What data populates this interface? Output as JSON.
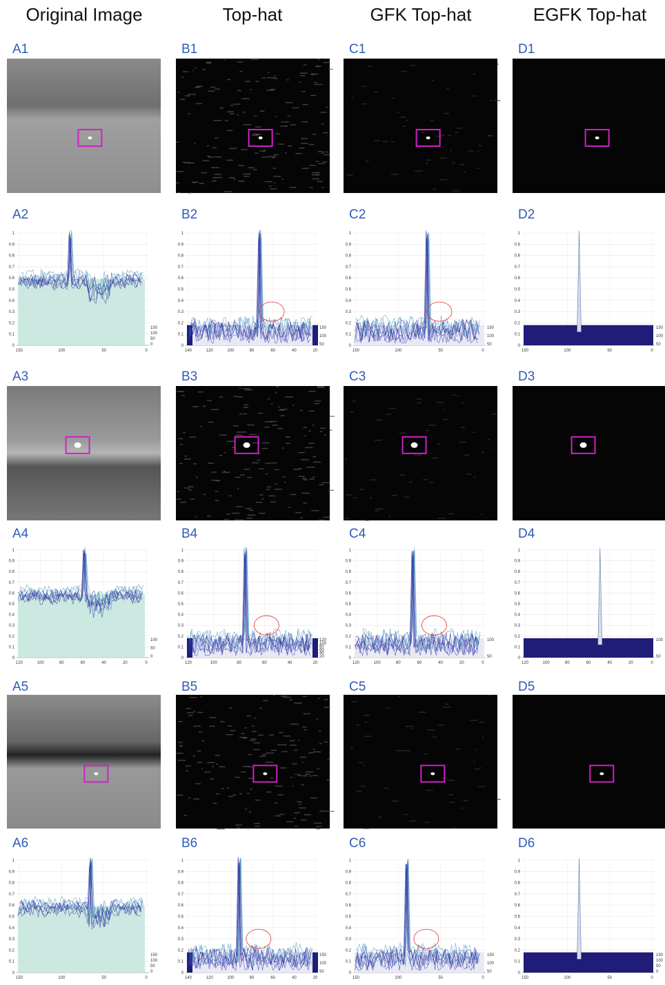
{
  "columns": [
    "Original Image",
    "Top-hat",
    "GFK Top-hat",
    "EGFK Top-hat"
  ],
  "rows": [
    {
      "panels": [
        {
          "label": "A1"
        },
        {
          "label": "B1"
        },
        {
          "label": "C1"
        },
        {
          "label": "D1"
        }
      ]
    },
    {
      "panels": [
        {
          "label": "A2",
          "yticks": [
            0,
            0.1,
            0.2,
            0.3,
            0.4,
            0.5,
            0.6,
            0.7,
            0.8,
            0.9,
            1
          ],
          "xticks": [
            150,
            100,
            50,
            0
          ],
          "zticks": [
            150,
            100,
            50,
            0
          ]
        },
        {
          "label": "B2",
          "yticks": [
            0,
            0.1,
            0.2,
            0.3,
            0.4,
            0.5,
            0.6,
            0.7,
            0.8,
            0.9,
            1
          ],
          "xticks": [
            140,
            120,
            100,
            80,
            60,
            40,
            20
          ],
          "zticks": [
            150,
            100,
            50
          ]
        },
        {
          "label": "C2",
          "yticks": [
            0,
            0.1,
            0.2,
            0.3,
            0.4,
            0.5,
            0.6,
            0.7,
            0.8,
            0.9,
            1
          ],
          "xticks": [
            150,
            100,
            50,
            0
          ],
          "zticks": [
            150,
            100,
            50
          ]
        },
        {
          "label": "D2",
          "yticks": [
            0,
            0.1,
            0.2,
            0.3,
            0.4,
            0.5,
            0.6,
            0.7,
            0.8,
            0.9,
            1
          ],
          "xticks": [
            150,
            100,
            50,
            0
          ],
          "zticks": [
            150,
            100,
            50
          ]
        }
      ]
    },
    {
      "panels": [
        {
          "label": "A3"
        },
        {
          "label": "B3"
        },
        {
          "label": "C3"
        },
        {
          "label": "D3"
        }
      ]
    },
    {
      "panels": [
        {
          "label": "A4",
          "yticks": [
            0,
            0.1,
            0.2,
            0.3,
            0.4,
            0.5,
            0.6,
            0.7,
            0.8,
            0.9,
            1
          ],
          "xticks": [
            120,
            100,
            80,
            60,
            40,
            20,
            0
          ],
          "zticks": [
            100,
            50,
            0
          ]
        },
        {
          "label": "B4",
          "yticks": [
            0,
            0.1,
            0.2,
            0.3,
            0.4,
            0.5,
            0.6,
            0.7,
            0.8,
            0.9,
            1
          ],
          "xticks": [
            120,
            100,
            80,
            60,
            40,
            20
          ],
          "zticks": [
            120,
            100,
            80,
            60,
            40,
            20
          ]
        },
        {
          "label": "C4",
          "yticks": [
            0,
            0.1,
            0.2,
            0.3,
            0.4,
            0.5,
            0.6,
            0.7,
            0.8,
            0.9,
            1
          ],
          "xticks": [
            120,
            100,
            80,
            60,
            40,
            20,
            0
          ],
          "zticks": [
            100,
            50
          ]
        },
        {
          "label": "D4",
          "yticks": [
            0,
            0.1,
            0.2,
            0.3,
            0.4,
            0.5,
            0.6,
            0.7,
            0.8,
            0.9,
            1
          ],
          "xticks": [
            120,
            100,
            80,
            60,
            40,
            20,
            0
          ],
          "zticks": [
            100,
            50
          ]
        }
      ]
    },
    {
      "panels": [
        {
          "label": "A5"
        },
        {
          "label": "B5"
        },
        {
          "label": "C5"
        },
        {
          "label": "D5"
        }
      ]
    },
    {
      "panels": [
        {
          "label": "A6",
          "yticks": [
            0,
            0.1,
            0.2,
            0.3,
            0.4,
            0.5,
            0.6,
            0.7,
            0.8,
            0.9,
            1
          ],
          "xticks": [
            150,
            100,
            50,
            0
          ],
          "zticks": [
            150,
            100,
            50,
            0
          ]
        },
        {
          "label": "B6",
          "yticks": [
            0,
            0.1,
            0.2,
            0.3,
            0.4,
            0.5,
            0.6,
            0.7,
            0.8,
            0.9,
            1
          ],
          "xticks": [
            140,
            120,
            100,
            80,
            60,
            40,
            20
          ],
          "zticks": [
            150,
            100,
            50
          ]
        },
        {
          "label": "C6",
          "yticks": [
            0,
            0.1,
            0.2,
            0.3,
            0.4,
            0.5,
            0.6,
            0.7,
            0.8,
            0.9,
            1
          ],
          "xticks": [
            150,
            100,
            50,
            0
          ],
          "zticks": [
            150,
            100,
            50
          ]
        },
        {
          "label": "D6",
          "yticks": [
            0,
            0.1,
            0.2,
            0.3,
            0.4,
            0.5,
            0.6,
            0.7,
            0.8,
            0.9,
            1
          ],
          "xticks": [
            150,
            100,
            50,
            0
          ],
          "zticks": [
            150,
            100,
            50,
            0
          ]
        }
      ]
    }
  ]
}
